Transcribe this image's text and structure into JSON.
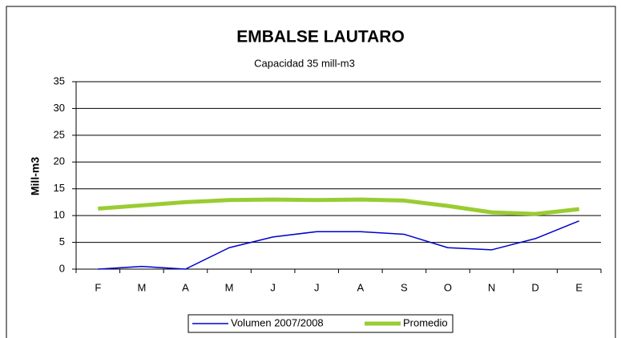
{
  "chart_data": {
    "type": "line",
    "title": "EMBALSE LAUTARO",
    "subtitle": "Capacidad 35 mill-m3",
    "y_label": "Mill-m3",
    "categories": [
      "F",
      "M",
      "A",
      "M",
      "J",
      "J",
      "A",
      "S",
      "O",
      "N",
      "D",
      "E"
    ],
    "series": [
      {
        "name": "Volumen  2007/2008",
        "color": "#0000cc",
        "values": [
          0,
          0.5,
          0,
          4,
          6,
          7,
          7,
          6.5,
          4,
          3.6,
          5.7,
          9
        ]
      },
      {
        "name": "Promedio",
        "color": "#99cc33",
        "values": [
          11.3,
          11.9,
          12.5,
          12.9,
          13.0,
          12.9,
          13.0,
          12.8,
          11.8,
          10.6,
          10.3,
          11.2
        ]
      }
    ],
    "ylim": [
      0,
      35
    ],
    "yticks": [
      0,
      5,
      10,
      15,
      20,
      25,
      30,
      35
    ],
    "grid": true,
    "legend": "bottom"
  }
}
